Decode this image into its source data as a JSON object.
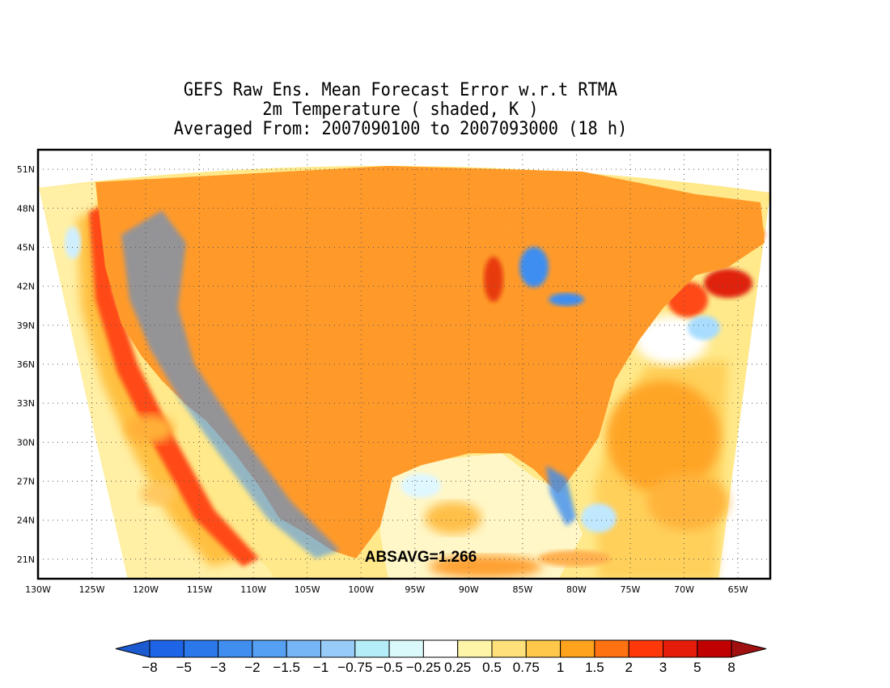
{
  "title": {
    "line1": "GEFS Raw Ens. Mean Forecast Error w.r.t RTMA",
    "line2": "2m Temperature ( shaded, K )",
    "line3": "Averaged From: 2007090100 to 2007093000 (18 h)"
  },
  "map": {
    "projection": "lat-lon",
    "lon_range": [
      -130,
      -62
    ],
    "lat_range": [
      19.5,
      52.5
    ],
    "grid": true,
    "grid_style": "dotted"
  },
  "axes": {
    "lat_ticks": [
      "51N",
      "48N",
      "45N",
      "42N",
      "39N",
      "36N",
      "33N",
      "30N",
      "27N",
      "24N",
      "21N"
    ],
    "lat_values": [
      51,
      48,
      45,
      42,
      39,
      36,
      33,
      30,
      27,
      24,
      21
    ],
    "lon_ticks": [
      "130W",
      "125W",
      "120W",
      "115W",
      "110W",
      "105W",
      "100W",
      "95W",
      "90W",
      "85W",
      "80W",
      "75W",
      "70W",
      "65W"
    ],
    "lon_values": [
      -130,
      -125,
      -120,
      -115,
      -110,
      -105,
      -100,
      -95,
      -90,
      -85,
      -80,
      -75,
      -70,
      -65
    ]
  },
  "annotation": "ABSAVG=1.266",
  "colorbar": {
    "labels": [
      "−8",
      "−5",
      "−3",
      "−2",
      "−1.5",
      "−1",
      "−0.75",
      "−0.5",
      "−0.25",
      "0.25",
      "0.5",
      "0.75",
      "1",
      "1.5",
      "2",
      "3",
      "5",
      "8"
    ],
    "colors": [
      "#1e64e6",
      "#2b78ea",
      "#3f8ef0",
      "#55a0f2",
      "#76b6f6",
      "#98ccf8",
      "#b4ecf8",
      "#daf9fa",
      "#ffffff",
      "#fff5a8",
      "#ffe07a",
      "#ffc84a",
      "#ffa21c",
      "#ff7212",
      "#ff380a",
      "#e61c0a",
      "#c00000",
      "#1c5ad0",
      "#a01010"
    ]
  }
}
